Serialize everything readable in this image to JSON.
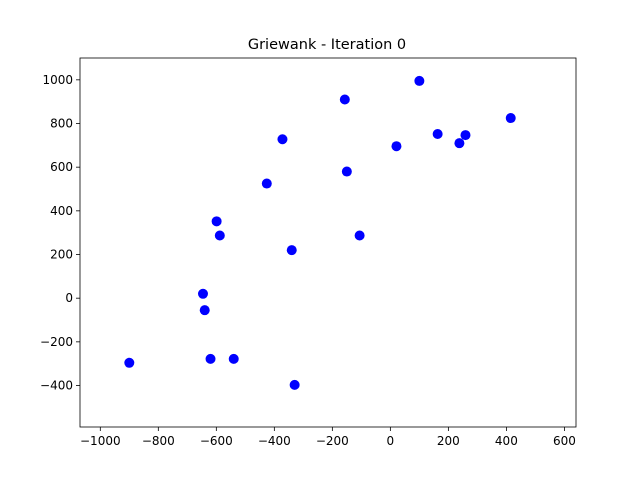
{
  "chart_data": {
    "type": "scatter",
    "title": "Griewank - Iteration 0",
    "xlabel": "",
    "ylabel": "",
    "xlim": [
      -1070,
      640
    ],
    "ylim": [
      -590,
      1100
    ],
    "xticks": [
      -1000,
      -800,
      -600,
      -400,
      -200,
      0,
      200,
      400,
      600
    ],
    "yticks": [
      -400,
      -200,
      0,
      200,
      400,
      600,
      800,
      1000
    ],
    "xtick_labels": [
      "−1000",
      "−800",
      "−600",
      "−400",
      "−200",
      "0",
      "200",
      "400",
      "600"
    ],
    "ytick_labels": [
      "−400",
      "−200",
      "0",
      "200",
      "400",
      "600",
      "800",
      "1000"
    ],
    "grid": false,
    "legend": "none",
    "marker_color": "#0000ff",
    "points": [
      {
        "x": 100,
        "y": 995
      },
      {
        "x": -157,
        "y": 910
      },
      {
        "x": 415,
        "y": 825
      },
      {
        "x": 163,
        "y": 752
      },
      {
        "x": 259,
        "y": 747
      },
      {
        "x": 238,
        "y": 710
      },
      {
        "x": -372,
        "y": 728
      },
      {
        "x": 21,
        "y": 696
      },
      {
        "x": -150,
        "y": 580
      },
      {
        "x": -426,
        "y": 525
      },
      {
        "x": -599,
        "y": 352
      },
      {
        "x": -588,
        "y": 287
      },
      {
        "x": -106,
        "y": 287
      },
      {
        "x": -340,
        "y": 220
      },
      {
        "x": -646,
        "y": 20
      },
      {
        "x": -640,
        "y": -55
      },
      {
        "x": -620,
        "y": -278
      },
      {
        "x": -540,
        "y": -278
      },
      {
        "x": -900,
        "y": -296
      },
      {
        "x": -330,
        "y": -397
      }
    ]
  }
}
